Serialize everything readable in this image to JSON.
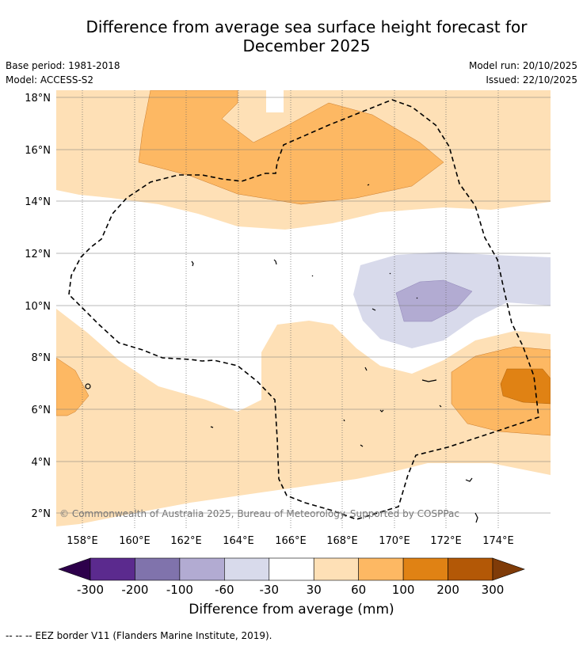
{
  "title_line1": "Difference from average sea surface height forecast for",
  "title_line2": "December 2025",
  "base_period": "Base period: 1981-2018",
  "model": "Model: ACCESS-S2",
  "model_run": "Model run: 20/10/2025",
  "issued": "Issued: 22/10/2025",
  "lat_labels": [
    "18°N",
    "16°N",
    "14°N",
    "12°N",
    "10°N",
    "8°N",
    "6°N",
    "4°N",
    "2°N"
  ],
  "lon_labels": [
    "158°E",
    "160°E",
    "162°E",
    "164°E",
    "166°E",
    "168°E",
    "170°E",
    "172°E",
    "174°E"
  ],
  "copyright": "© Commonwealth of Australia 2025, Bureau of Meteorology. Supported by COSPPac",
  "colorbar": {
    "label": "Difference from average (mm)",
    "ticks": [
      "-300",
      "-200",
      "-100",
      "-60",
      "-30",
      "30",
      "60",
      "100",
      "200",
      "300"
    ],
    "colors": [
      "#2d004b",
      "#5b2a8e",
      "#8073ac",
      "#b2abd2",
      "#d8daeb",
      "#ffffff",
      "#fee0b6",
      "#fdb863",
      "#e08214",
      "#b35806",
      "#7f3b08"
    ]
  },
  "footer": "--  --  -- EEZ border V11 (Flanders Marine Institute, 2019)."
}
